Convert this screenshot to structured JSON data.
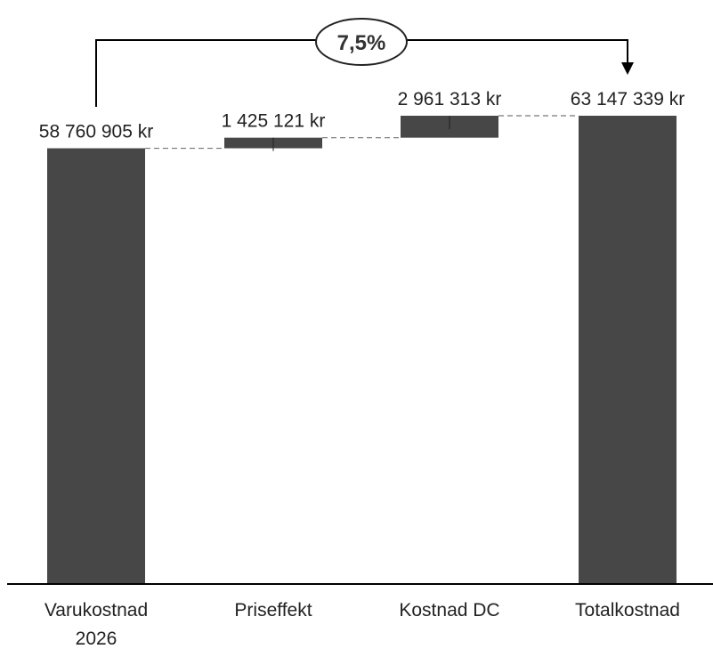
{
  "chart_data": {
    "type": "waterfall",
    "categories": [
      [
        "Varukostnad",
        "2026"
      ],
      [
        "Priseffekt"
      ],
      [
        "Kostnad DC"
      ],
      [
        "Totalkostnad"
      ]
    ],
    "values": [
      58760905,
      1425121,
      2961313,
      63147339
    ],
    "kinds": [
      "total",
      "delta",
      "delta",
      "total"
    ],
    "value_labels": [
      "58 760 905 kr",
      "1 425 121 kr",
      "2 961 313 kr",
      "63 147 339 kr"
    ],
    "change_annotation": "7,5%",
    "ylim": [
      0,
      63147339
    ],
    "grid": false,
    "colors": {
      "bar": "#474747",
      "connector": "#777777",
      "axis": "#000000",
      "bracket": "#000000"
    }
  }
}
